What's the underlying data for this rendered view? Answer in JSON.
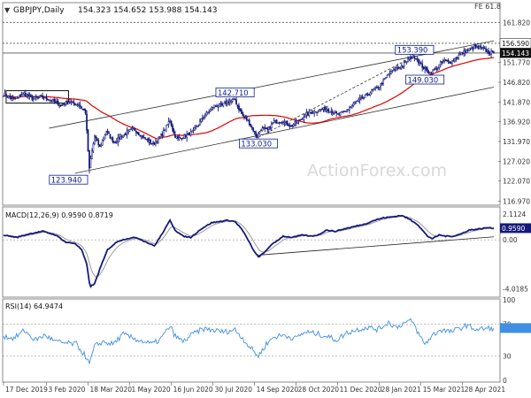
{
  "header": {
    "caret": "▼",
    "symbol": "GBPJPY,Daily",
    "ohlc": "154.323 154.652 153.988 154.143",
    "fe_label": "FE 61.8",
    "watermark": "ActionForex.com"
  },
  "macd_panel": {
    "title": "MACD(12,26,9) 0.9590 0.8719"
  },
  "rsi_panel": {
    "title": "RSI(14) 64.9474"
  },
  "colors": {
    "price": "#151a7a",
    "ma55": "#e00000",
    "macd": "#151a7a",
    "signal": "#9a9a9a",
    "rsi": "#3f8fe4",
    "level_line": "#555555",
    "channel": "#333333",
    "box_fill": "#0c1e8c",
    "label_fill": "#0c1e8c"
  },
  "chart_data": [
    {
      "type": "candlestick",
      "panel": "price",
      "y_ticks": [
        "161.820",
        "156.590",
        "154.143",
        "151.770",
        "146.820",
        "141.870",
        "136.920",
        "131.970",
        "127.020",
        "122.070",
        "116.970"
      ],
      "y_tick_values": [
        161.82,
        156.59,
        154.143,
        151.77,
        146.82,
        141.87,
        136.92,
        131.97,
        127.02,
        122.07,
        116.97
      ],
      "ylim": [
        116.0,
        163.0
      ],
      "x_ticks": [
        "17 Dec 2019",
        "3 Feb 2020",
        "18 Mar 2020",
        "1 May 2020",
        "16 Jun 2020",
        "30 Jul 2020",
        "14 Sep 2020",
        "28 Oct 2020",
        "11 Dec 2020",
        "28 Jan 2021",
        "15 Mar 2021",
        "28 Apr 2021"
      ],
      "x_tick_index": [
        0,
        33,
        65,
        97,
        129,
        161,
        193,
        225,
        257,
        289,
        321,
        353
      ],
      "total_bars": 378,
      "close_anchors": [
        [
          0,
          143.8
        ],
        [
          8,
          142.5
        ],
        [
          16,
          144.0
        ],
        [
          22,
          142.7
        ],
        [
          30,
          143.1
        ],
        [
          37,
          142.3
        ],
        [
          44,
          141.0
        ],
        [
          50,
          141.9
        ],
        [
          58,
          141.2
        ],
        [
          63,
          139.3
        ],
        [
          65,
          129.5
        ],
        [
          66,
          124.9
        ],
        [
          67,
          127.6
        ],
        [
          70,
          133.3
        ],
        [
          74,
          130.5
        ],
        [
          79,
          134.5
        ],
        [
          85,
          131.8
        ],
        [
          93,
          133.8
        ],
        [
          100,
          135.2
        ],
        [
          108,
          132.8
        ],
        [
          115,
          131.3
        ],
        [
          122,
          133.8
        ],
        [
          128,
          137.4
        ],
        [
          131,
          133.8
        ],
        [
          134,
          132.6
        ],
        [
          140,
          133.4
        ],
        [
          146,
          134.5
        ],
        [
          154,
          138.3
        ],
        [
          162,
          140.9
        ],
        [
          168,
          141.0
        ],
        [
          173,
          142.0
        ],
        [
          178,
          142.4
        ],
        [
          180,
          140.8
        ],
        [
          184,
          138.3
        ],
        [
          188,
          137.2
        ],
        [
          192,
          134.8
        ],
        [
          195,
          133.1
        ],
        [
          198,
          135.2
        ],
        [
          203,
          134.8
        ],
        [
          208,
          136.9
        ],
        [
          215,
          137.1
        ],
        [
          221,
          135.8
        ],
        [
          227,
          137.2
        ],
        [
          233,
          138.8
        ],
        [
          240,
          139.6
        ],
        [
          247,
          140.2
        ],
        [
          252,
          139.7
        ],
        [
          257,
          138.6
        ],
        [
          263,
          139.5
        ],
        [
          270,
          141.6
        ],
        [
          277,
          143.0
        ],
        [
          283,
          144.6
        ],
        [
          289,
          145.8
        ],
        [
          296,
          148.8
        ],
        [
          302,
          150.3
        ],
        [
          307,
          151.0
        ],
        [
          312,
          152.8
        ],
        [
          316,
          153.4
        ],
        [
          321,
          151.2
        ],
        [
          324,
          150.1
        ],
        [
          328,
          149.2
        ],
        [
          333,
          150.4
        ],
        [
          338,
          152.1
        ],
        [
          344,
          151.9
        ],
        [
          350,
          153.5
        ],
        [
          356,
          154.8
        ],
        [
          362,
          155.6
        ],
        [
          368,
          155.3
        ],
        [
          373,
          154.3
        ],
        [
          377,
          154.143
        ]
      ],
      "levels": [
        {
          "label": "FE 61.8",
          "value": 161.82
        },
        {
          "label": "156.590",
          "value": 156.59
        },
        {
          "label": "last",
          "value": 154.143
        }
      ],
      "annotations": [
        {
          "label": "142.710",
          "index": 178,
          "value": 142.71
        },
        {
          "label": "133.030",
          "index": 196,
          "value": 133.03
        },
        {
          "label": "123.940",
          "index": 66,
          "value": 123.94
        },
        {
          "label": "153.390",
          "index": 316,
          "value": 153.39
        },
        {
          "label": "149.030",
          "index": 324,
          "value": 149.03
        }
      ],
      "trend_lines": [
        {
          "from": [
            35,
            135.3
          ],
          "to": [
            377,
            157.2
          ]
        },
        {
          "from": [
            55,
            124.0
          ],
          "to": [
            377,
            145.6
          ]
        },
        {
          "from": [
            196,
            133.03
          ],
          "to": [
            316,
            153.39
          ],
          "style": "dashed"
        }
      ],
      "ma": {
        "name": "55-day SMA",
        "color": "#e00000"
      }
    },
    {
      "type": "line",
      "panel": "macd",
      "y_ticks": [
        "2.1124",
        "0.9590",
        "0.00",
        "-4.0185"
      ],
      "y_tick_values": [
        2.1124,
        0.959,
        0.0,
        -4.0185
      ],
      "ylim": [
        -4.55,
        2.55
      ],
      "series": [
        {
          "name": "MACD",
          "values_anchors": [
            [
              0,
              0.4
            ],
            [
              10,
              0.2
            ],
            [
              20,
              0.5
            ],
            [
              30,
              0.7
            ],
            [
              40,
              0.4
            ],
            [
              48,
              -0.2
            ],
            [
              55,
              -0.3
            ],
            [
              60,
              -0.8
            ],
            [
              64,
              -2.0
            ],
            [
              66,
              -3.5
            ],
            [
              67,
              -3.8
            ],
            [
              70,
              -3.6
            ],
            [
              74,
              -2.4
            ],
            [
              80,
              -0.8
            ],
            [
              88,
              -0.1
            ],
            [
              95,
              0.1
            ],
            [
              102,
              0.2
            ],
            [
              110,
              -0.2
            ],
            [
              116,
              -0.5
            ],
            [
              122,
              0.5
            ],
            [
              128,
              1.6
            ],
            [
              132,
              0.8
            ],
            [
              138,
              0.3
            ],
            [
              144,
              0.2
            ],
            [
              152,
              0.9
            ],
            [
              160,
              1.4
            ],
            [
              166,
              1.5
            ],
            [
              172,
              1.6
            ],
            [
              178,
              1.5
            ],
            [
              183,
              0.9
            ],
            [
              188,
              0.0
            ],
            [
              193,
              -1.0
            ],
            [
              196,
              -1.4
            ],
            [
              200,
              -1.1
            ],
            [
              205,
              -0.5
            ],
            [
              210,
              -0.1
            ],
            [
              215,
              0.3
            ],
            [
              222,
              0.2
            ],
            [
              230,
              0.4
            ],
            [
              236,
              0.3
            ],
            [
              242,
              0.4
            ],
            [
              248,
              0.8
            ],
            [
              255,
              0.7
            ],
            [
              262,
              0.9
            ],
            [
              270,
              1.1
            ],
            [
              278,
              1.3
            ],
            [
              285,
              1.6
            ],
            [
              292,
              1.8
            ],
            [
              300,
              1.9
            ],
            [
              306,
              2.0
            ],
            [
              312,
              1.7
            ],
            [
              318,
              1.3
            ],
            [
              322,
              0.8
            ],
            [
              326,
              0.3
            ],
            [
              330,
              0.1
            ],
            [
              335,
              0.4
            ],
            [
              340,
              0.3
            ],
            [
              346,
              0.3
            ],
            [
              352,
              0.5
            ],
            [
              358,
              0.8
            ],
            [
              366,
              0.9
            ],
            [
              372,
              1.0
            ],
            [
              377,
              0.959
            ]
          ]
        },
        {
          "name": "Signal",
          "smoothing": 9
        }
      ],
      "trend_line": {
        "from": [
          196,
          -1.25
        ],
        "to": [
          377,
          0.25
        ]
      }
    },
    {
      "type": "line",
      "panel": "rsi",
      "y_ticks": [
        "100",
        "70",
        "30",
        "0"
      ],
      "y_tick_values": [
        100,
        70,
        30,
        0
      ],
      "ylim": [
        0,
        100
      ],
      "series": [
        {
          "name": "RSI(14)",
          "values_anchors": [
            [
              0,
              55
            ],
            [
              8,
              52
            ],
            [
              16,
              62
            ],
            [
              24,
              50
            ],
            [
              32,
              56
            ],
            [
              40,
              48
            ],
            [
              48,
              46
            ],
            [
              56,
              45
            ],
            [
              63,
              30
            ],
            [
              66,
              20
            ],
            [
              70,
              42
            ],
            [
              76,
              48
            ],
            [
              84,
              45
            ],
            [
              92,
              57
            ],
            [
              100,
              52
            ],
            [
              108,
              48
            ],
            [
              114,
              45
            ],
            [
              120,
              50
            ],
            [
              128,
              67
            ],
            [
              132,
              55
            ],
            [
              138,
              48
            ],
            [
              146,
              58
            ],
            [
              154,
              64
            ],
            [
              162,
              62
            ],
            [
              170,
              60
            ],
            [
              178,
              63
            ],
            [
              184,
              52
            ],
            [
              190,
              40
            ],
            [
              196,
              30
            ],
            [
              202,
              45
            ],
            [
              208,
              54
            ],
            [
              216,
              56
            ],
            [
              224,
              52
            ],
            [
              232,
              60
            ],
            [
              240,
              58
            ],
            [
              248,
              55
            ],
            [
              256,
              50
            ],
            [
              264,
              59
            ],
            [
              272,
              63
            ],
            [
              280,
              66
            ],
            [
              288,
              63
            ],
            [
              296,
              72
            ],
            [
              302,
              66
            ],
            [
              308,
              71
            ],
            [
              314,
              74
            ],
            [
              320,
              55
            ],
            [
              324,
              45
            ],
            [
              330,
              56
            ],
            [
              336,
              63
            ],
            [
              344,
              60
            ],
            [
              350,
              64
            ],
            [
              356,
              68
            ],
            [
              364,
              63
            ],
            [
              370,
              64
            ],
            [
              377,
              64.9474
            ]
          ]
        }
      ],
      "levels": [
        70,
        30
      ]
    }
  ]
}
